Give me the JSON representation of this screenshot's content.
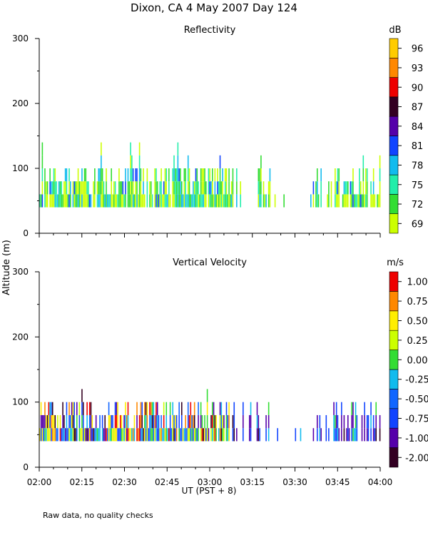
{
  "page_title": "Dixon, CA  4 May 2007  Day 124",
  "y_axis_label": "Altitude (m)",
  "x_axis_label": "UT  (PST + 8)",
  "footnote": "Raw data, no quality checks",
  "chart_data": [
    {
      "type": "heatmap",
      "title": "Reflectivity",
      "xlabel": "UT  (PST + 8)",
      "ylabel": "Altitude (m)",
      "x_range_utc": [
        "02:00",
        "04:00"
      ],
      "x_ticks": [
        "02:00",
        "02:15",
        "02:30",
        "02:45",
        "03:00",
        "03:15",
        "03:30",
        "03:45",
        "04:00"
      ],
      "ylim": [
        0,
        300
      ],
      "y_ticks": [
        0,
        100,
        200,
        300
      ],
      "colorbar": {
        "unit": "dB",
        "labels": [
          "69",
          "72",
          "75",
          "78",
          "81",
          "84",
          "87",
          "90",
          "93",
          "96"
        ],
        "colors": [
          "#ccff00",
          "#33dd33",
          "#22eeaa",
          "#11bbee",
          "#1144ff",
          "#5500aa",
          "#330022",
          "#ee0000",
          "#ff8800",
          "#ffcc00"
        ]
      },
      "observed_altitude_m": [
        40,
        140
      ],
      "typical_top_m": 100,
      "segments": [
        {
          "start": "02:00",
          "end": "03:07",
          "top_m": 140,
          "level": "dense"
        },
        {
          "start": "03:07",
          "end": "03:21",
          "top_m": 120,
          "level": "sparse"
        },
        {
          "start": "03:21",
          "end": "03:36",
          "top_m": 60,
          "level": "very sparse"
        },
        {
          "start": "03:36",
          "end": "04:00",
          "top_m": 120,
          "level": "moderate"
        }
      ]
    },
    {
      "type": "heatmap",
      "title": "Vertical Velocity",
      "xlabel": "UT  (PST + 8)",
      "ylabel": "Altitude (m)",
      "x_range_utc": [
        "02:00",
        "04:00"
      ],
      "x_ticks": [
        "02:00",
        "02:15",
        "02:30",
        "02:45",
        "03:00",
        "03:15",
        "03:30",
        "03:45",
        "04:00"
      ],
      "ylim": [
        0,
        300
      ],
      "y_ticks": [
        0,
        100,
        200,
        300
      ],
      "colorbar": {
        "unit": "m/s",
        "labels": [
          "-2.00",
          "-1.00",
          "-0.75",
          "-0.50",
          "-0.25",
          "0.00",
          "0.25",
          "0.50",
          "0.75",
          "1.00"
        ],
        "colors": [
          "#330022",
          "#5500aa",
          "#1144ff",
          "#1166ff",
          "#11bbee",
          "#33dd33",
          "#ccff00",
          "#ffee00",
          "#ff8800",
          "#ee0000"
        ]
      },
      "observed_altitude_m": [
        40,
        140
      ],
      "typical_top_m": 100,
      "segments": [
        {
          "start": "02:00",
          "end": "03:07",
          "top_m": 140,
          "level": "dense"
        },
        {
          "start": "03:07",
          "end": "03:21",
          "top_m": 120,
          "level": "sparse"
        },
        {
          "start": "03:21",
          "end": "03:36",
          "top_m": 60,
          "level": "very sparse"
        },
        {
          "start": "03:36",
          "end": "04:00",
          "top_m": 120,
          "level": "moderate"
        }
      ]
    }
  ]
}
